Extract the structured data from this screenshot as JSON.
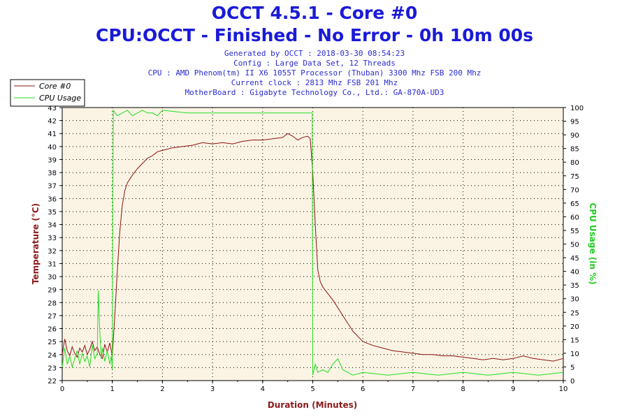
{
  "header": {
    "title": "OCCT 4.5.1 - Core #0",
    "subtitle": "CPU:OCCT - Finished - No Error - 0h 10m 00s",
    "info": [
      "Generated by OCCT : 2018-03-30 08:54:23",
      "Config : Large Data Set, 12 Threads",
      "CPU : AMD Phenom(tm) II X6 1055T Processor (Thuban) 3300 Mhz FSB 200 Mhz",
      "Current clock : 2813 Mhz FSB 201 Mhz",
      "MotherBoard : Gigabyte Technology Co., Ltd.: GA-870A-UD3"
    ]
  },
  "chart_data": {
    "type": "line",
    "xlabel": "Duration (Minutes)",
    "ylabel": "Temperature (°C)",
    "y2label": "CPU Usage (in %)",
    "xlim": [
      0,
      10
    ],
    "ylim": [
      22,
      43
    ],
    "y2lim": [
      0,
      100
    ],
    "x_ticks": [
      "0",
      "1",
      "2",
      "3",
      "4",
      "5",
      "6",
      "7",
      "8",
      "9",
      "10"
    ],
    "y_ticks": [
      "22",
      "23",
      "24",
      "25",
      "26",
      "27",
      "28",
      "29",
      "30",
      "31",
      "32",
      "33",
      "34",
      "35",
      "36",
      "37",
      "38",
      "39",
      "40",
      "41",
      "42",
      "43"
    ],
    "y2_ticks": [
      "0",
      "5",
      "10",
      "15",
      "20",
      "25",
      "30",
      "35",
      "40",
      "45",
      "50",
      "55",
      "60",
      "65",
      "70",
      "75",
      "80",
      "85",
      "90",
      "95",
      "100"
    ],
    "grid": true,
    "legend_position": "top-left",
    "colors": {
      "temperature": "#8b1010",
      "usage": "#22dd22",
      "plot_bg": "#fbf4e4",
      "axis_label": "#8b1a1a",
      "y2_label": "#22cc22",
      "title": "#1a1ad8"
    },
    "series": [
      {
        "name": "Core #0",
        "axis": "left",
        "x": [
          0,
          0.05,
          0.1,
          0.15,
          0.2,
          0.25,
          0.3,
          0.35,
          0.4,
          0.45,
          0.5,
          0.55,
          0.6,
          0.65,
          0.7,
          0.75,
          0.8,
          0.85,
          0.9,
          0.95,
          1.0,
          1.05,
          1.1,
          1.15,
          1.2,
          1.25,
          1.3,
          1.4,
          1.5,
          1.6,
          1.7,
          1.8,
          1.9,
          2.0,
          2.2,
          2.4,
          2.6,
          2.8,
          3.0,
          3.2,
          3.4,
          3.6,
          3.8,
          4.0,
          4.2,
          4.4,
          4.5,
          4.6,
          4.7,
          4.8,
          4.9,
          4.95,
          5.0,
          5.05,
          5.1,
          5.15,
          5.2,
          5.3,
          5.4,
          5.5,
          5.6,
          5.7,
          5.8,
          5.9,
          6.0,
          6.2,
          6.4,
          6.6,
          6.8,
          7.0,
          7.2,
          7.4,
          7.6,
          7.8,
          8.0,
          8.2,
          8.4,
          8.6,
          8.8,
          9.0,
          9.2,
          9.4,
          9.6,
          9.8,
          10.0
        ],
        "values": [
          24.0,
          25.2,
          24.3,
          23.9,
          24.6,
          24.1,
          23.8,
          24.5,
          24.2,
          24.7,
          24.0,
          24.4,
          25.0,
          24.3,
          24.6,
          24.0,
          23.7,
          24.8,
          24.2,
          24.9,
          23.9,
          27.0,
          30.5,
          33.5,
          35.5,
          36.6,
          37.2,
          37.8,
          38.3,
          38.7,
          39.1,
          39.3,
          39.6,
          39.7,
          39.9,
          40.0,
          40.1,
          40.3,
          40.2,
          40.3,
          40.2,
          40.4,
          40.5,
          40.5,
          40.6,
          40.7,
          41.0,
          40.8,
          40.5,
          40.7,
          40.8,
          40.6,
          38.0,
          34.0,
          30.5,
          29.6,
          29.2,
          28.7,
          28.2,
          27.6,
          27.0,
          26.4,
          25.8,
          25.4,
          25.0,
          24.7,
          24.5,
          24.3,
          24.2,
          24.1,
          24.0,
          24.0,
          23.9,
          23.9,
          23.8,
          23.7,
          23.6,
          23.7,
          23.6,
          23.7,
          23.9,
          23.7,
          23.6,
          23.5,
          23.7
        ]
      },
      {
        "name": "CPU Usage",
        "axis": "right",
        "x": [
          0,
          0.05,
          0.1,
          0.15,
          0.2,
          0.25,
          0.3,
          0.35,
          0.4,
          0.45,
          0.5,
          0.55,
          0.6,
          0.65,
          0.7,
          0.72,
          0.75,
          0.78,
          0.8,
          0.85,
          0.9,
          0.95,
          0.98,
          1.0,
          1.01,
          1.02,
          1.1,
          1.2,
          1.3,
          1.4,
          1.5,
          1.6,
          1.7,
          1.8,
          1.9,
          2.0,
          2.5,
          3.0,
          3.5,
          4.0,
          4.5,
          4.95,
          4.98,
          4.99,
          5.0,
          5.05,
          5.1,
          5.2,
          5.3,
          5.4,
          5.5,
          5.6,
          5.7,
          5.8,
          6.0,
          6.5,
          7.0,
          7.5,
          8.0,
          8.5,
          9.0,
          9.5,
          10.0
        ],
        "values": [
          5,
          12,
          6,
          9,
          5,
          8,
          11,
          6,
          10,
          7,
          9,
          5,
          13,
          8,
          10,
          33,
          18,
          8,
          12,
          7,
          11,
          6,
          9,
          4,
          60,
          99,
          97,
          98,
          99,
          97,
          98,
          99,
          98,
          98,
          97,
          99,
          98,
          98,
          98,
          98,
          98,
          98,
          98,
          98,
          2,
          6,
          3,
          4,
          3,
          6,
          8,
          4,
          3,
          2,
          3,
          2,
          3,
          2,
          3,
          2,
          3,
          2,
          3
        ]
      }
    ]
  }
}
